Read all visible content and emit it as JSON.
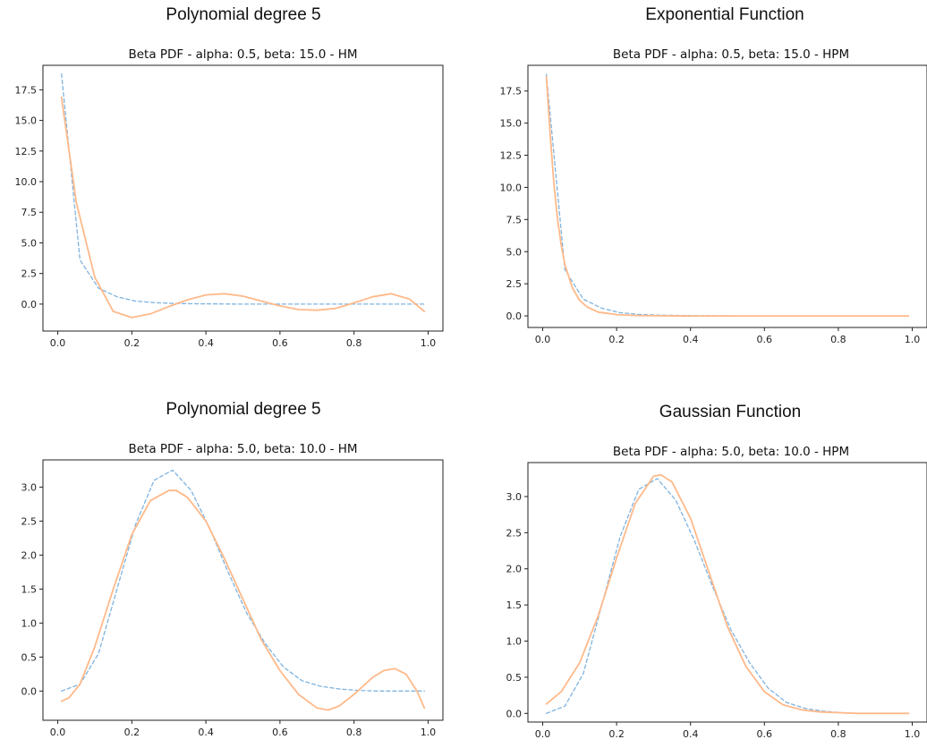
{
  "panel_headings": [
    "Polynomial degree 5",
    "Exponential Function",
    "Polynomial degree 5",
    "Gaussian Function"
  ],
  "colors": {
    "observed": "#7fb3df",
    "fitted": "#ffb98a",
    "axis": "#222222"
  },
  "chart_data": [
    {
      "type": "line",
      "title": "Beta PDF - alpha: 0.5, beta: 15.0 - HM",
      "xlim": [
        -0.04,
        1.04
      ],
      "ylim": [
        -2.2,
        19.5
      ],
      "xticks": [
        "0.0",
        "0.2",
        "0.4",
        "0.6",
        "0.8",
        "1.0"
      ],
      "xtick_values": [
        0,
        0.2,
        0.4,
        0.6,
        0.8,
        1.0
      ],
      "yticks": [
        "0.0",
        "2.5",
        "5.0",
        "7.5",
        "10.0",
        "12.5",
        "15.0",
        "17.5"
      ],
      "ytick_values": [
        0,
        2.5,
        5,
        7.5,
        10,
        12.5,
        15,
        17.5
      ],
      "series": [
        {
          "style": "dashed",
          "color": "#7fb3df",
          "x": [
            0.01,
            0.06,
            0.11,
            0.16,
            0.21,
            0.26,
            0.31,
            0.36,
            0.41,
            0.46,
            0.51,
            0.56,
            0.61,
            0.66,
            0.71,
            0.76,
            0.81,
            0.86,
            0.91,
            0.96,
            0.99
          ],
          "y": [
            18.8,
            3.6,
            1.3,
            0.6,
            0.25,
            0.12,
            0.06,
            0.03,
            0.02,
            0.01,
            0.0,
            0.0,
            0.0,
            0.0,
            0.0,
            0.0,
            0.0,
            0.0,
            0.0,
            0.0,
            0.0
          ]
        },
        {
          "style": "solid",
          "color": "#ffb98a",
          "x": [
            0.01,
            0.05,
            0.1,
            0.15,
            0.2,
            0.25,
            0.3,
            0.35,
            0.4,
            0.45,
            0.5,
            0.55,
            0.6,
            0.65,
            0.7,
            0.75,
            0.8,
            0.85,
            0.9,
            0.95,
            0.99
          ],
          "y": [
            16.9,
            8.3,
            2.2,
            -0.6,
            -1.1,
            -0.8,
            -0.2,
            0.35,
            0.75,
            0.85,
            0.65,
            0.25,
            -0.15,
            -0.45,
            -0.5,
            -0.35,
            0.1,
            0.6,
            0.85,
            0.4,
            -0.6
          ]
        }
      ]
    },
    {
      "type": "line",
      "title": "Beta PDF - alpha: 0.5, beta: 15.0 - HPM",
      "xlim": [
        -0.04,
        1.04
      ],
      "ylim": [
        -0.9,
        19.5
      ],
      "xticks": [
        "0.0",
        "0.2",
        "0.4",
        "0.6",
        "0.8",
        "1.0"
      ],
      "xtick_values": [
        0,
        0.2,
        0.4,
        0.6,
        0.8,
        1.0
      ],
      "yticks": [
        "0.0",
        "2.5",
        "5.0",
        "7.5",
        "10.0",
        "12.5",
        "15.0",
        "17.5"
      ],
      "ytick_values": [
        0,
        2.5,
        5,
        7.5,
        10,
        12.5,
        15,
        17.5
      ],
      "series": [
        {
          "style": "dashed",
          "color": "#7fb3df",
          "x": [
            0.01,
            0.06,
            0.11,
            0.16,
            0.21,
            0.26,
            0.31,
            0.41,
            0.51,
            0.61,
            0.71,
            0.81,
            0.91,
            0.99
          ],
          "y": [
            18.8,
            3.6,
            1.3,
            0.6,
            0.25,
            0.12,
            0.06,
            0.02,
            0.0,
            0.0,
            0.0,
            0.0,
            0.0,
            0.0
          ]
        },
        {
          "style": "solid",
          "color": "#ffb98a",
          "x": [
            0.01,
            0.02,
            0.03,
            0.04,
            0.05,
            0.06,
            0.08,
            0.1,
            0.12,
            0.15,
            0.2,
            0.25,
            0.3,
            0.4,
            0.5,
            0.7,
            0.99
          ],
          "y": [
            18.6,
            14.2,
            10.4,
            7.6,
            5.5,
            4.0,
            2.2,
            1.2,
            0.7,
            0.3,
            0.1,
            0.03,
            0.01,
            0.0,
            0.0,
            0.0,
            0.0
          ]
        }
      ]
    },
    {
      "type": "line",
      "title": "Beta PDF - alpha: 5.0, beta: 10.0 - HM",
      "xlim": [
        -0.04,
        1.04
      ],
      "ylim": [
        -0.43,
        3.4
      ],
      "xticks": [
        "0.0",
        "0.2",
        "0.4",
        "0.6",
        "0.8",
        "1.0"
      ],
      "xtick_values": [
        0,
        0.2,
        0.4,
        0.6,
        0.8,
        1.0
      ],
      "yticks": [
        "0.0",
        "0.5",
        "1.0",
        "1.5",
        "2.0",
        "2.5",
        "3.0"
      ],
      "ytick_values": [
        0,
        0.5,
        1.0,
        1.5,
        2.0,
        2.5,
        3.0
      ],
      "series": [
        {
          "style": "dashed",
          "color": "#7fb3df",
          "x": [
            0.01,
            0.06,
            0.11,
            0.16,
            0.21,
            0.26,
            0.31,
            0.36,
            0.41,
            0.46,
            0.51,
            0.56,
            0.61,
            0.66,
            0.71,
            0.76,
            0.81,
            0.86,
            0.91,
            0.96,
            0.99
          ],
          "y": [
            0.0,
            0.1,
            0.55,
            1.5,
            2.45,
            3.1,
            3.25,
            2.95,
            2.4,
            1.75,
            1.15,
            0.7,
            0.35,
            0.15,
            0.07,
            0.03,
            0.01,
            0.0,
            0.0,
            0.0,
            0.0
          ]
        },
        {
          "style": "solid",
          "color": "#ffb98a",
          "x": [
            0.01,
            0.03,
            0.06,
            0.1,
            0.15,
            0.2,
            0.25,
            0.3,
            0.32,
            0.35,
            0.4,
            0.45,
            0.5,
            0.55,
            0.6,
            0.65,
            0.7,
            0.73,
            0.76,
            0.8,
            0.85,
            0.88,
            0.91,
            0.94,
            0.97,
            0.99
          ],
          "y": [
            -0.15,
            -0.1,
            0.1,
            0.65,
            1.5,
            2.3,
            2.8,
            2.95,
            2.95,
            2.85,
            2.5,
            1.95,
            1.35,
            0.75,
            0.3,
            -0.05,
            -0.25,
            -0.28,
            -0.22,
            -0.05,
            0.2,
            0.3,
            0.33,
            0.25,
            0.0,
            -0.25
          ]
        }
      ]
    },
    {
      "type": "line",
      "title": "Beta PDF - alpha: 5.0, beta: 10.0 - HPM",
      "xlim": [
        -0.04,
        1.04
      ],
      "ylim": [
        -0.12,
        3.47
      ],
      "xticks": [
        "0.0",
        "0.2",
        "0.4",
        "0.6",
        "0.8",
        "1.0"
      ],
      "xtick_values": [
        0,
        0.2,
        0.4,
        0.6,
        0.8,
        1.0
      ],
      "yticks": [
        "0.0",
        "0.5",
        "1.0",
        "1.5",
        "2.0",
        "2.5",
        "3.0"
      ],
      "ytick_values": [
        0,
        0.5,
        1.0,
        1.5,
        2.0,
        2.5,
        3.0
      ],
      "series": [
        {
          "style": "dashed",
          "color": "#7fb3df",
          "x": [
            0.01,
            0.06,
            0.11,
            0.16,
            0.21,
            0.26,
            0.31,
            0.36,
            0.41,
            0.46,
            0.51,
            0.56,
            0.61,
            0.66,
            0.71,
            0.76,
            0.81,
            0.86,
            0.91,
            0.96,
            0.99
          ],
          "y": [
            0.0,
            0.1,
            0.55,
            1.5,
            2.45,
            3.1,
            3.25,
            2.95,
            2.4,
            1.75,
            1.15,
            0.7,
            0.35,
            0.15,
            0.07,
            0.03,
            0.01,
            0.0,
            0.0,
            0.0,
            0.0
          ]
        },
        {
          "style": "solid",
          "color": "#ffb98a",
          "x": [
            0.01,
            0.05,
            0.1,
            0.15,
            0.2,
            0.25,
            0.3,
            0.32,
            0.35,
            0.4,
            0.45,
            0.5,
            0.55,
            0.6,
            0.65,
            0.7,
            0.75,
            0.8,
            0.85,
            0.9,
            0.99
          ],
          "y": [
            0.13,
            0.3,
            0.7,
            1.35,
            2.15,
            2.9,
            3.28,
            3.3,
            3.2,
            2.7,
            1.95,
            1.2,
            0.65,
            0.3,
            0.12,
            0.05,
            0.02,
            0.01,
            0.0,
            0.0,
            0.0
          ]
        }
      ]
    }
  ]
}
